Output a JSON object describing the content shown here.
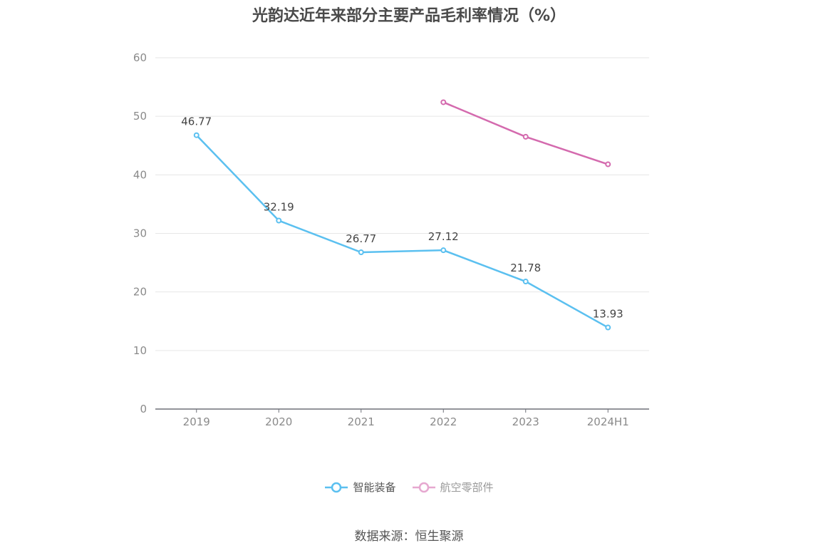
{
  "chart_data": {
    "type": "line",
    "title": "光韵达近年来部分主要产品毛利率情况（%）",
    "categories": [
      "2019",
      "2020",
      "2021",
      "2022",
      "2023",
      "2024H1"
    ],
    "ylim": [
      0,
      60
    ],
    "yticks": [
      0,
      10,
      20,
      30,
      40,
      50,
      60
    ],
    "grid": true,
    "legend_position": "bottom",
    "series": [
      {
        "name": "智能装备",
        "color": "#5bc0f0",
        "values": [
          46.77,
          32.19,
          26.77,
          27.12,
          21.78,
          13.93
        ],
        "labels": [
          "46.77",
          "32.19",
          "26.77",
          "27.12",
          "21.78",
          "13.93"
        ]
      },
      {
        "name": "航空零部件",
        "color": "#d46aae",
        "values": [
          null,
          null,
          null,
          52.4,
          46.5,
          41.8
        ],
        "labels": [
          "",
          "",
          "",
          "",
          "",
          ""
        ]
      }
    ]
  },
  "legend": {
    "items": [
      {
        "label": "智能装备",
        "color": "#5bc0f0",
        "text_color": "#555555"
      },
      {
        "label": "航空零部件",
        "color": "#e6a8d0",
        "text_color": "#999999"
      }
    ]
  },
  "source": "数据来源：恒生聚源"
}
